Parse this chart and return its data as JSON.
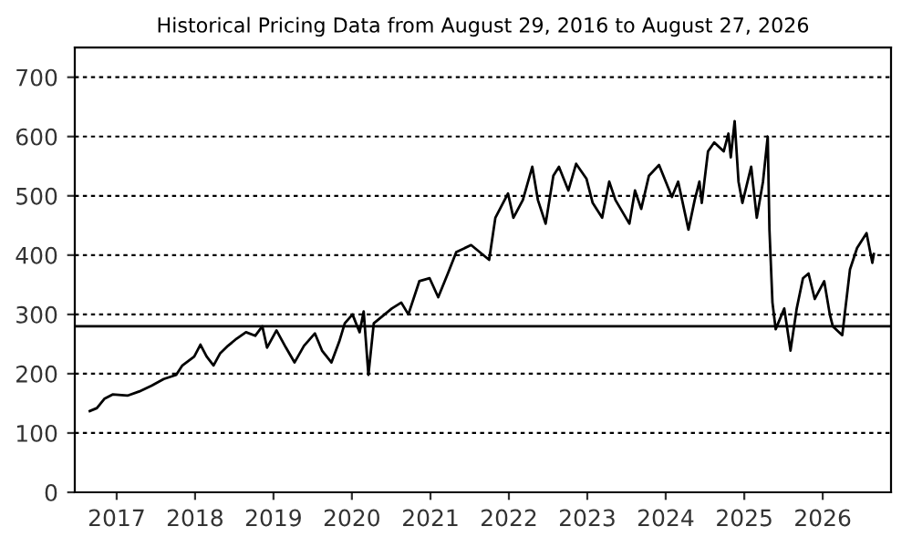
{
  "chart_data": {
    "type": "line",
    "title": "Historical Pricing Data from August 29, 2016 to August 27, 2026",
    "x": [
      "2016-08-29",
      "2016-10-01",
      "2016-11-06",
      "2016-12-13",
      "2017-02-20",
      "2017-04-16",
      "2017-06-13",
      "2017-08-08",
      "2017-10-05",
      "2017-11-03",
      "2017-12-28",
      "2018-01-26",
      "2018-02-24",
      "2018-03-28",
      "2018-04-27",
      "2018-06-03",
      "2018-07-13",
      "2018-08-26",
      "2018-10-08",
      "2018-11-10",
      "2018-12-02",
      "2019-01-15",
      "2019-02-28",
      "2019-04-09",
      "2019-05-23",
      "2019-07-13",
      "2019-08-15",
      "2019-09-28",
      "2019-11-03",
      "2019-11-29",
      "2020-01-04",
      "2020-02-06",
      "2020-02-25",
      "2020-03-18",
      "2020-04-12",
      "2020-05-26",
      "2020-07-05",
      "2020-08-18",
      "2020-09-20",
      "2020-11-10",
      "2020-12-28",
      "2021-02-06",
      "2021-03-25",
      "2021-05-01",
      "2021-07-09",
      "2021-10-01",
      "2021-10-30",
      "2021-12-28",
      "2022-01-22",
      "2022-03-07",
      "2022-04-20",
      "2022-05-16",
      "2022-06-21",
      "2022-07-27",
      "2022-08-22",
      "2022-10-05",
      "2022-11-10",
      "2022-12-28",
      "2023-01-26",
      "2023-03-11",
      "2023-04-13",
      "2023-05-12",
      "2023-07-16",
      "2023-08-11",
      "2023-09-09",
      "2023-10-15",
      "2023-12-01",
      "2024-01-30",
      "2024-02-28",
      "2024-04-16",
      "2024-05-15",
      "2024-06-06",
      "2024-06-17",
      "2024-07-16",
      "2024-08-14",
      "2024-09-27",
      "2024-10-19",
      "2024-10-30",
      "2024-11-17",
      "2024-12-05",
      "2024-12-23",
      "2025-02-02",
      "2025-02-28",
      "2025-03-29",
      "2025-04-20",
      "2025-04-28",
      "2025-05-12",
      "2025-05-27",
      "2025-07-06",
      "2025-08-04",
      "2025-09-02",
      "2025-10-01",
      "2025-10-27",
      "2025-11-25",
      "2026-01-08",
      "2026-02-03",
      "2026-02-17",
      "2026-04-02",
      "2026-05-08",
      "2026-06-10",
      "2026-07-24",
      "2026-08-20",
      "2026-08-27"
    ],
    "series": [
      {
        "color": "#000000",
        "values": [
          137,
          142,
          158,
          165,
          163,
          170,
          180,
          191,
          198,
          214,
          229,
          249,
          229,
          214,
          234,
          247,
          259,
          270,
          264,
          280,
          244,
          273,
          244,
          219,
          247,
          268,
          239,
          219,
          254,
          285,
          300,
          270,
          305,
          198,
          285,
          298,
          310,
          320,
          300,
          356,
          361,
          329,
          371,
          405,
          417,
          392,
          463,
          504,
          463,
          493,
          549,
          493,
          453,
          534,
          549,
          509,
          554,
          529,
          488,
          463,
          524,
          493,
          453,
          509,
          478,
          534,
          552,
          498,
          524,
          443,
          493,
          524,
          488,
          575,
          590,
          575,
          605,
          565,
          626,
          524,
          488,
          549,
          463,
          524,
          600,
          443,
          320,
          275,
          310,
          239,
          310,
          361,
          369,
          326,
          356,
          300,
          280,
          265,
          376,
          412,
          437,
          387,
          402
        ]
      }
    ],
    "xlim": [
      "2016-06-20",
      "2026-11-15"
    ],
    "xticks": [
      {
        "value": "2017-01-01",
        "label": "2017"
      },
      {
        "value": "2018-01-01",
        "label": "2018"
      },
      {
        "value": "2019-01-01",
        "label": "2019"
      },
      {
        "value": "2020-01-01",
        "label": "2020"
      },
      {
        "value": "2021-01-01",
        "label": "2021"
      },
      {
        "value": "2022-01-01",
        "label": "2022"
      },
      {
        "value": "2023-01-01",
        "label": "2023"
      },
      {
        "value": "2024-01-01",
        "label": "2024"
      },
      {
        "value": "2025-01-01",
        "label": "2025"
      },
      {
        "value": "2026-01-01",
        "label": "2026"
      }
    ],
    "ylim": [
      0,
      750
    ],
    "yticks": [
      0,
      100,
      200,
      300,
      400,
      500,
      600,
      700
    ],
    "grid": "y",
    "legend": false,
    "marker": "none",
    "line_style": "solid",
    "ref_lines": [
      {
        "axis": "y",
        "value": 280,
        "label": null,
        "color": "#000000",
        "line_style": "solid"
      }
    ]
  }
}
